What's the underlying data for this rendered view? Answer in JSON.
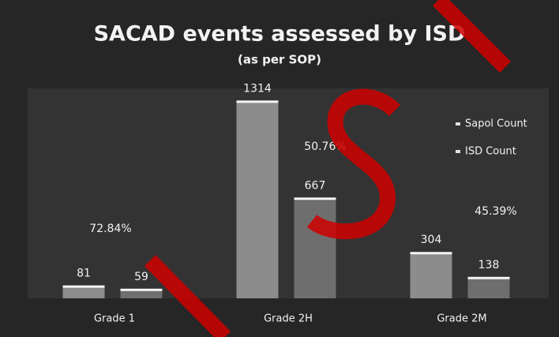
{
  "chart_data": {
    "type": "bar",
    "title": "SACAD events assessed by ISD",
    "subtitle": "(as per SOP)",
    "categories": [
      "Grade 1",
      "Grade 2H",
      "Grade 2M"
    ],
    "series": [
      {
        "name": "Sapol Count",
        "color": "#8c8c8c",
        "values": [
          81,
          1314,
          304
        ]
      },
      {
        "name": "ISD Count",
        "color": "#6e6e6e",
        "values": [
          59,
          667,
          138
        ]
      }
    ],
    "annotations": [
      "72.84%",
      "50.76%",
      "45.39%"
    ],
    "ylim": [
      0,
      1400
    ],
    "legend": "right"
  }
}
